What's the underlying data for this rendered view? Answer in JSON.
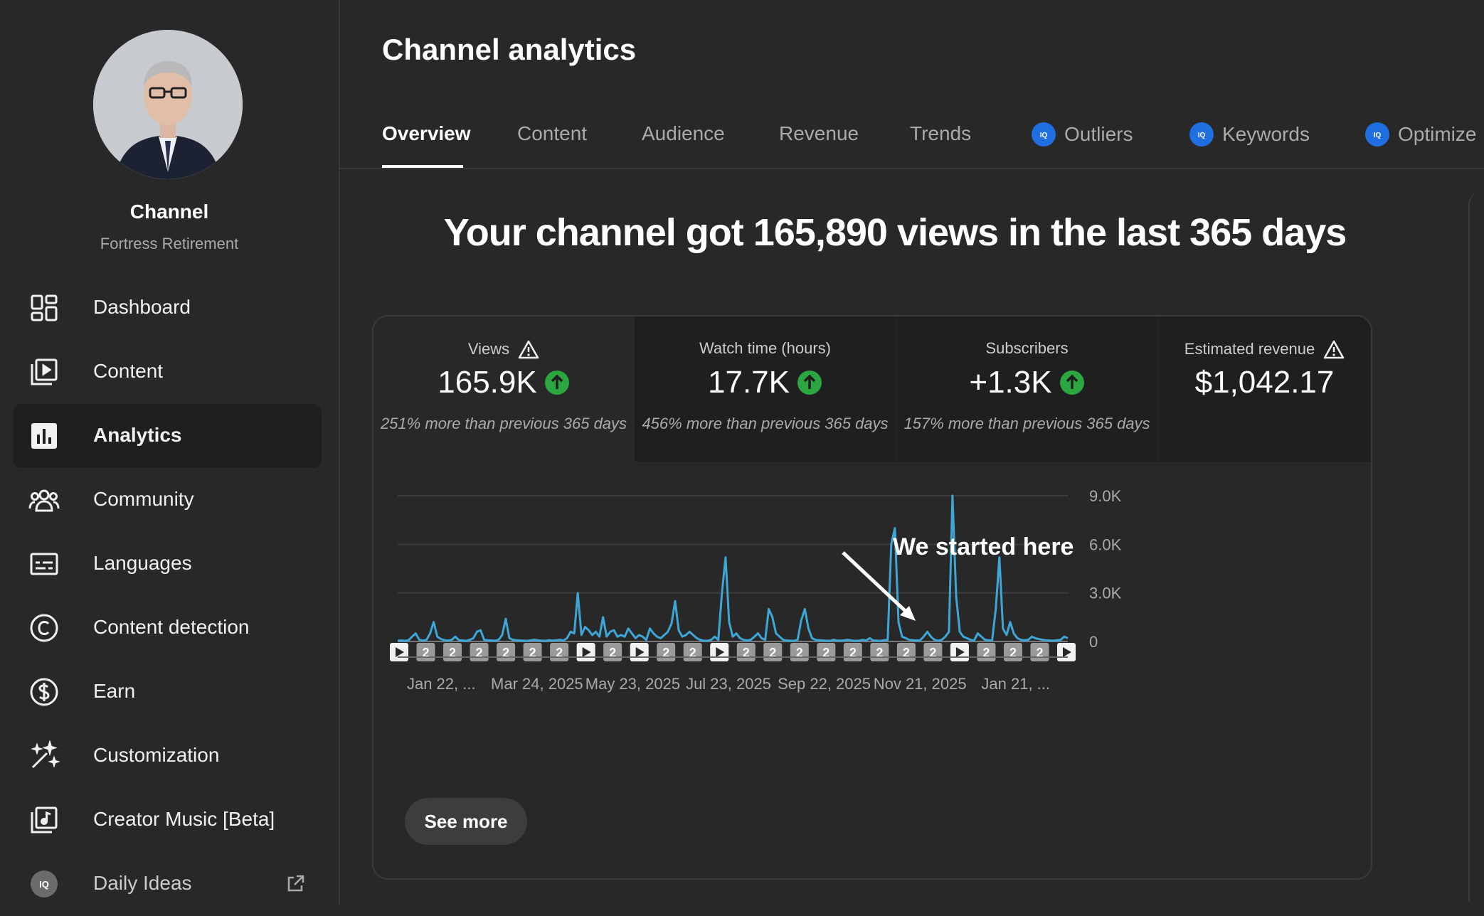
{
  "sidebar": {
    "channel_title": "Channel",
    "channel_name": "Fortress Retirement",
    "items": [
      {
        "label": "Dashboard",
        "icon": "dashboard-icon"
      },
      {
        "label": "Content",
        "icon": "content-icon"
      },
      {
        "label": "Analytics",
        "icon": "analytics-icon",
        "active": true
      },
      {
        "label": "Community",
        "icon": "community-icon"
      },
      {
        "label": "Languages",
        "icon": "languages-icon"
      },
      {
        "label": "Content detection",
        "icon": "copyright-icon"
      },
      {
        "label": "Earn",
        "icon": "dollar-icon"
      },
      {
        "label": "Customization",
        "icon": "magic-wand-icon"
      },
      {
        "label": "Creator Music [Beta]",
        "icon": "music-icon"
      },
      {
        "label": "Daily Ideas",
        "icon": "vidiq-icon",
        "external": true
      }
    ]
  },
  "header": {
    "title": "Channel analytics",
    "tabs": [
      {
        "label": "Overview",
        "active": true
      },
      {
        "label": "Content"
      },
      {
        "label": "Audience"
      },
      {
        "label": "Revenue"
      },
      {
        "label": "Trends"
      },
      {
        "label": "Outliers",
        "badge": "vidiq"
      },
      {
        "label": "Keywords",
        "badge": "vidiq"
      },
      {
        "label": "Optimize",
        "badge": "vidiq"
      }
    ]
  },
  "headline": "Your channel got 165,890 views in the last 365 days",
  "metrics": [
    {
      "label": "Views",
      "value": "165.9K",
      "comparison": "251% more than previous 365 days",
      "warning": true,
      "trend": "up"
    },
    {
      "label": "Watch time (hours)",
      "value": "17.7K",
      "comparison": "456% more than previous 365 days",
      "trend": "up"
    },
    {
      "label": "Subscribers",
      "value": "+1.3K",
      "comparison": "157% more than previous 365 days",
      "trend": "up"
    },
    {
      "label": "Estimated revenue",
      "value": "$1,042.17",
      "comparison": "",
      "warning": true
    }
  ],
  "colors": {
    "line": "#3ea6d6",
    "accent_green": "#2ba640",
    "vidiq_blue": "#1f6fe0",
    "background": "#282828"
  },
  "annotation": "We started here",
  "see_more_label": "See more",
  "chart_data": {
    "type": "line",
    "series": [
      {
        "name": "",
        "x_start": 0,
        "x_end": 365,
        "values": [
          50,
          60,
          40,
          80,
          300,
          500,
          100,
          60,
          90,
          500,
          1200,
          300,
          150,
          80,
          60,
          100,
          300,
          80,
          60,
          40,
          100,
          200,
          600,
          700,
          100,
          80,
          60,
          50,
          100,
          400,
          1400,
          200,
          100,
          80,
          60,
          50,
          40,
          80,
          100,
          70,
          50,
          40,
          80,
          60,
          80,
          100,
          60,
          200,
          600,
          500,
          3000,
          400,
          900,
          700,
          400,
          600,
          300,
          1500,
          300,
          600,
          700,
          300,
          400,
          300,
          800,
          500,
          200,
          400,
          300,
          100,
          800,
          500,
          300,
          200,
          400,
          600,
          1100,
          2500,
          700,
          300,
          400,
          600,
          400,
          200,
          100,
          50,
          40,
          100,
          300,
          100,
          3000,
          5200,
          1200,
          300,
          500,
          200,
          100,
          60,
          100,
          300,
          500,
          200,
          100,
          2000,
          1500,
          500,
          300,
          100,
          60,
          50,
          40,
          100,
          1300,
          2000,
          800,
          200,
          100,
          80,
          60,
          50,
          40,
          100,
          60,
          50,
          80,
          100,
          60,
          40,
          50,
          100,
          60,
          200,
          60,
          50,
          40,
          80,
          100,
          6000,
          7000,
          1200,
          300,
          200,
          100,
          80,
          60,
          80,
          300,
          600,
          300,
          100,
          50,
          100,
          300,
          600,
          9000,
          2800,
          600,
          300,
          200,
          100,
          60,
          500,
          300,
          100,
          80,
          60,
          2000,
          5200,
          800,
          400,
          1200,
          500,
          200,
          100,
          80,
          100,
          300,
          200,
          150,
          100,
          80,
          60,
          50,
          80,
          100,
          300,
          200
        ]
      }
    ],
    "x_tick_labels": [
      "Jan 22, ...",
      "Mar 24, 2025",
      "May 23, 2025",
      "Jul 23, 2025",
      "Sep 22, 2025",
      "Nov 21, 2025",
      "Jan 21, ..."
    ],
    "y_tick_labels": [
      "9.0K",
      "6.0K",
      "3.0K",
      "0"
    ],
    "y_ticks": [
      9000,
      6000,
      3000,
      0
    ],
    "ylim": [
      0,
      9000
    ],
    "grid": true,
    "markers": [
      "play",
      "2",
      "2",
      "2",
      "2",
      "2",
      "2",
      "play",
      "2",
      "play",
      "2",
      "2",
      "play",
      "2",
      "2",
      "2",
      "2",
      "2",
      "2",
      "2",
      "2",
      "play",
      "2",
      "2",
      "2",
      "play"
    ]
  }
}
